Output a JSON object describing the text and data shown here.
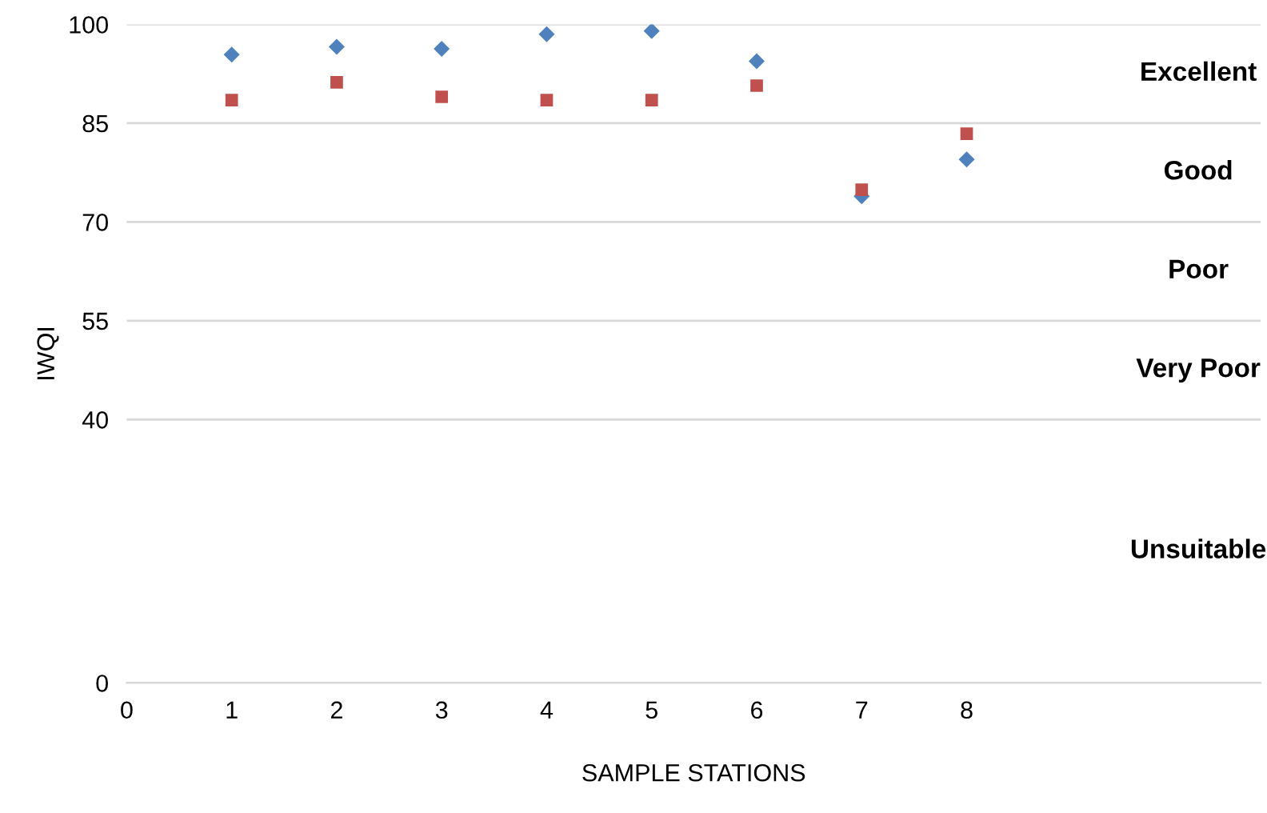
{
  "chart_data": {
    "type": "scatter",
    "xlabel": "SAMPLE STATIONS",
    "ylabel": "IWQI",
    "x": [
      1,
      2,
      3,
      4,
      5,
      6,
      7,
      8
    ],
    "series": [
      {
        "color": "#4f81bd",
        "marker": "diamond",
        "values": [
          95.4,
          96.6,
          96.3,
          98.5,
          99.0,
          94.4,
          73.9,
          79.5
        ]
      },
      {
        "color": "#c0504d",
        "marker": "square",
        "values": [
          88.5,
          91.2,
          89.0,
          88.5,
          88.5,
          90.7,
          74.9,
          83.4
        ]
      }
    ],
    "xlim": [
      0,
      10.8
    ],
    "xticks": [
      0,
      1,
      2,
      3,
      4,
      5,
      6,
      7,
      8
    ],
    "ylim": [
      0,
      100
    ],
    "yticks": [
      0,
      40,
      55,
      70,
      85,
      100
    ],
    "grid": "y",
    "legend": false,
    "annotations": [
      "Excellent",
      "Good",
      "Poor",
      "Very Poor",
      "Unsuitable"
    ]
  }
}
